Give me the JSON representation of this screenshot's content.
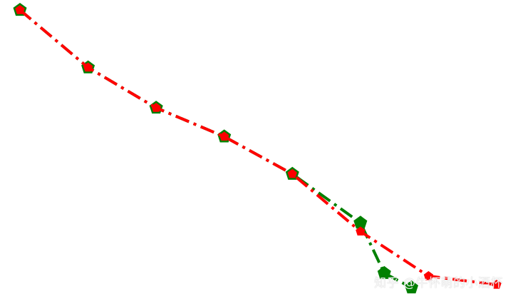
{
  "chart_data": {
    "type": "line",
    "title": "",
    "xlabel": "",
    "ylabel": "",
    "axes_visible": false,
    "grid": false,
    "legend": "none",
    "x": [
      0,
      1,
      2,
      3,
      4,
      5,
      6,
      7
    ],
    "series": [
      {
        "color": "#008000",
        "linestyle": "dash-dot",
        "marker": "pentagon",
        "x": [
          0,
          1,
          2,
          3,
          4,
          5,
          5.35,
          5.75
        ],
        "y": [
          97,
          77,
          63,
          53,
          40,
          23,
          5.5,
          0.5
        ]
      },
      {
        "color": "#ff0000",
        "linestyle": "dash-dot",
        "marker": "pentagon",
        "x": [
          0,
          1,
          2,
          3,
          4,
          5,
          6,
          7
        ],
        "y": [
          97,
          77,
          63,
          53,
          40,
          20,
          4.5,
          1.5
        ]
      }
    ]
  },
  "watermark": "知乎 @牛怀萌的小酒杯"
}
